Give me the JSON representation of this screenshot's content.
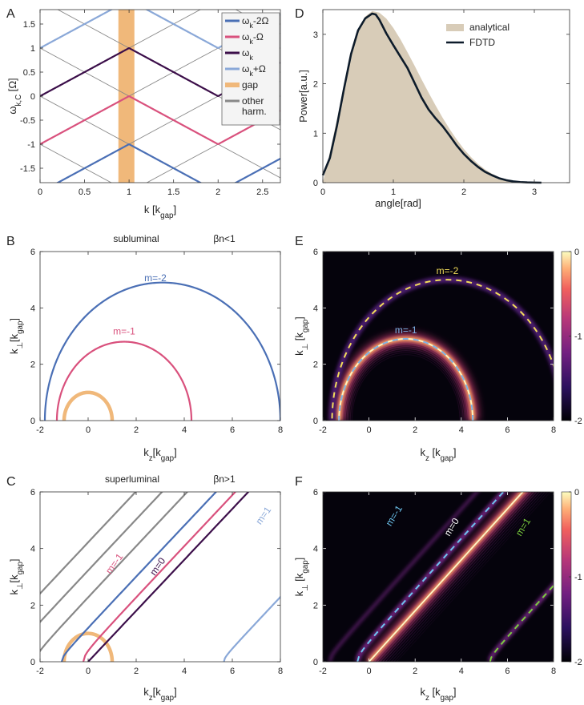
{
  "chart_data": [
    {
      "id": "A",
      "type": "line",
      "panel_label": "A",
      "xlabel": "k [k",
      "xlabel_sub": "gap",
      "xlabel_tail": "]",
      "ylabel": "ω",
      "ylabel_sub": "k,C",
      "ylabel_tail": " [Ω]",
      "xlim": [
        0,
        2.7
      ],
      "ylim": [
        -1.8,
        1.8
      ],
      "xticks": [
        0,
        0.5,
        1,
        1.5,
        2,
        2.5
      ],
      "xtick_labels": [
        "0",
        "0.5",
        "1",
        "1.5",
        "2",
        "2.5"
      ],
      "yticks": [
        -1.5,
        -1,
        -0.5,
        0,
        0.5,
        1,
        1.5
      ],
      "ytick_labels": [
        "-1.5",
        "-1",
        "-0.5",
        "0",
        "0.5",
        "1",
        "1.5"
      ],
      "gap_band": {
        "x": [
          0.88,
          1.06
        ],
        "color": "#f0b87a"
      },
      "legend": {
        "placement": "top-right",
        "entries": [
          {
            "label": "ω",
            "sub": "k",
            "tail": "-2Ω",
            "color": "#4a6fb5"
          },
          {
            "label": "ω",
            "sub": "k",
            "tail": "-Ω",
            "color": "#d9517d"
          },
          {
            "label": "ω",
            "sub": "k",
            "tail": "",
            "color": "#3c0f4a"
          },
          {
            "label": "ω",
            "sub": "k",
            "tail": "+Ω",
            "color": "#8aa8d8"
          },
          {
            "label": "gap",
            "sub": "",
            "tail": "",
            "color": "#f0b87a"
          },
          {
            "label": "other",
            "sub": "",
            "tail": "",
            "line2": "harm.",
            "color": "#888888"
          }
        ]
      },
      "series": [
        {
          "key": "wk_minus2",
          "color": "#4a6fb5",
          "offset": -2
        },
        {
          "key": "wk_minus1",
          "color": "#d9517d",
          "offset": -1
        },
        {
          "key": "wk",
          "color": "#3c0f4a",
          "offset": 0
        },
        {
          "key": "wk_plus1",
          "color": "#8aa8d8",
          "offset": 1
        }
      ],
      "harmonic_color": "#888888",
      "harmonic_slope": 1.0,
      "harmonic_offsets": [
        -4,
        -3,
        -2,
        -1,
        0,
        1,
        2,
        3,
        4
      ]
    },
    {
      "id": "D",
      "type": "area",
      "panel_label": "D",
      "xlabel": "angle[rad]",
      "ylabel": "Power[a.u.]",
      "xlim": [
        0,
        3.5
      ],
      "ylim": [
        0,
        3.5
      ],
      "xticks": [
        0,
        1,
        2,
        3
      ],
      "xtick_labels": [
        "0",
        "1",
        "2",
        "3"
      ],
      "yticks": [
        0,
        1,
        2,
        3
      ],
      "ytick_labels": [
        "0",
        "1",
        "2",
        "3"
      ],
      "legend": {
        "placement": "top-right",
        "entries": [
          {
            "label": "analytical",
            "color": "#d8ccb8",
            "kind": "patch"
          },
          {
            "label": "FDTD",
            "color": "#0d1b2a",
            "kind": "line"
          }
        ]
      },
      "series": [
        {
          "name": "analytical",
          "color": "#d8ccb8",
          "x": [
            0,
            0.1,
            0.2,
            0.3,
            0.4,
            0.5,
            0.6,
            0.7,
            0.8,
            0.9,
            1.0,
            1.1,
            1.2,
            1.3,
            1.4,
            1.5,
            1.6,
            1.7,
            1.8,
            1.9,
            2.0,
            2.1,
            2.2,
            2.3,
            2.4,
            2.5,
            2.6,
            2.7,
            2.8,
            2.9,
            3.0,
            3.1
          ],
          "y": [
            0.0,
            0.62,
            1.28,
            1.98,
            2.62,
            3.08,
            3.36,
            3.47,
            3.44,
            3.32,
            3.13,
            2.9,
            2.64,
            2.37,
            2.09,
            1.82,
            1.56,
            1.31,
            1.08,
            0.87,
            0.68,
            0.52,
            0.38,
            0.27,
            0.18,
            0.11,
            0.06,
            0.03,
            0.015,
            0.006,
            0.002,
            0.0
          ]
        },
        {
          "name": "FDTD",
          "color": "#0d1b2a",
          "x": [
            0,
            0.1,
            0.2,
            0.3,
            0.4,
            0.5,
            0.6,
            0.7,
            0.75,
            0.8,
            0.9,
            1.0,
            1.1,
            1.2,
            1.3,
            1.4,
            1.5,
            1.6,
            1.7,
            1.8,
            1.9,
            2.0,
            2.1,
            2.2,
            2.3,
            2.4,
            2.5,
            2.6,
            2.7,
            2.8,
            2.9,
            3.0,
            3.1
          ],
          "y": [
            0.15,
            0.5,
            1.15,
            1.9,
            2.6,
            3.08,
            3.32,
            3.42,
            3.4,
            3.3,
            3.02,
            2.78,
            2.55,
            2.32,
            2.02,
            1.72,
            1.48,
            1.3,
            1.14,
            0.95,
            0.75,
            0.58,
            0.44,
            0.32,
            0.22,
            0.15,
            0.09,
            0.05,
            0.025,
            0.012,
            0.005,
            0.002,
            0.0
          ]
        }
      ]
    },
    {
      "id": "B",
      "type": "line",
      "panel_label": "B",
      "title_left": "subluminal",
      "title_right": "βn<1",
      "xlabel": "k",
      "xlabel_sub": "z",
      "xlabel_tail": "[k",
      "xlabel_sub2": "gap",
      "xlabel_tail2": "]",
      "ylabel": "k",
      "ylabel_sub": "⊥",
      "ylabel_tail": "[k",
      "ylabel_sub2": "gap",
      "ylabel_tail2": "]",
      "xlim": [
        -2,
        8
      ],
      "ylim": [
        0,
        6
      ],
      "xticks": [
        -2,
        0,
        2,
        4,
        6,
        8
      ],
      "xtick_labels": [
        "-2",
        "0",
        "2",
        "4",
        "6",
        "8"
      ],
      "yticks": [
        0,
        2,
        4,
        6
      ],
      "ytick_labels": [
        "0",
        "2",
        "4",
        "6"
      ],
      "curves": [
        {
          "kind": "circle",
          "cx": 0,
          "r": 1,
          "color": "#f0b87a",
          "width": 4.5
        },
        {
          "kind": "circle",
          "cx": 1.5,
          "r": 2.8,
          "color": "#d9517d",
          "width": 2.2,
          "label": "m=-1",
          "label_at": [
            1.5,
            3.05
          ]
        },
        {
          "kind": "circle",
          "cx": 3.1,
          "r": 4.9,
          "color": "#4a6fb5",
          "width": 2.2,
          "label": "m=-2",
          "label_at": [
            2.8,
            4.95
          ]
        },
        {
          "kind": "circle",
          "cx": 4.3,
          "r": 9.5,
          "color": "#888888",
          "width": 2.5
        }
      ]
    },
    {
      "id": "E",
      "type": "heatmap",
      "panel_label": "E",
      "xlabel": "k",
      "xlabel_sub": "z",
      "xlabel_tail": " [k",
      "xlabel_sub2": "gap",
      "xlabel_tail2": "]",
      "ylabel": "k",
      "ylabel_sub": "⊥",
      "ylabel_tail": " [k",
      "ylabel_sub2": "gap",
      "ylabel_tail2": "]",
      "xlim": [
        -2,
        8
      ],
      "ylim": [
        0,
        6
      ],
      "xticks": [
        -2,
        0,
        2,
        4,
        6,
        8
      ],
      "xtick_labels": [
        "-2",
        "0",
        "2",
        "4",
        "6",
        "8"
      ],
      "yticks": [
        0,
        2,
        4,
        6
      ],
      "ytick_labels": [
        "0",
        "2",
        "4",
        "6"
      ],
      "colorbar": {
        "range": [
          -2,
          0
        ],
        "ticks": [
          0,
          -1,
          -2
        ],
        "tick_labels": [
          "0",
          "-1",
          "-2"
        ]
      },
      "curves": [
        {
          "kind": "circle",
          "cx": 1.6,
          "r": 2.9,
          "label": "m=-1",
          "label_color": "#7fb2e6",
          "dash_color": "#7fb2e6",
          "intensity": 1.0,
          "label_at": [
            1.6,
            3.1
          ]
        },
        {
          "kind": "circle",
          "cx": 3.4,
          "r": 5.0,
          "label": "m=-2",
          "label_color": "#f2dd5a",
          "dash_color": "#f2dd5a",
          "intensity": 0.45,
          "label_at": [
            3.4,
            5.2
          ]
        }
      ]
    },
    {
      "id": "C",
      "type": "line",
      "panel_label": "C",
      "title_left": "superluminal",
      "title_right": "βn>1",
      "xlabel": "k",
      "xlabel_sub": "z",
      "xlabel_tail": "[k",
      "xlabel_sub2": "gap",
      "xlabel_tail2": "]",
      "ylabel": "k",
      "ylabel_sub": "⊥",
      "ylabel_tail": "[k",
      "ylabel_sub2": "gap",
      "ylabel_tail2": "]",
      "xlim": [
        -2,
        8
      ],
      "ylim": [
        0,
        6
      ],
      "xticks": [
        -2,
        0,
        2,
        4,
        6,
        8
      ],
      "xtick_labels": [
        "-2",
        "0",
        "2",
        "4",
        "6",
        "8"
      ],
      "yticks": [
        0,
        2,
        4,
        6
      ],
      "ytick_labels": [
        "0",
        "2",
        "4",
        "6"
      ],
      "gap_circle": {
        "cx": 0,
        "r": 1,
        "color": "#f0b87a"
      },
      "hyperbolas": [
        {
          "x0": 0.0,
          "a": 0.0,
          "slope": 0.9,
          "color": "#3c0f4a",
          "label": "m=0",
          "label_at": [
            3.0,
            3.3
          ]
        },
        {
          "x0": -0.55,
          "a": 0.35,
          "slope": 0.9,
          "color": "#d9517d",
          "label": "m=-1",
          "label_at": [
            1.2,
            3.4
          ]
        },
        {
          "x0": -1.35,
          "a": 0.25,
          "slope": 0.9,
          "color": "#4a6fb5"
        },
        {
          "x0": 5.45,
          "a": 0.2,
          "slope": 0.9,
          "color": "#8aa8d8",
          "label": "m=1",
          "label_at": [
            7.4,
            5.1
          ]
        },
        {
          "x0": -2.55,
          "a": 0.35,
          "slope": 0.9,
          "color": "#888888"
        },
        {
          "x0": -3.6,
          "a": 0.35,
          "slope": 0.9,
          "color": "#888888"
        },
        {
          "x0": -4.7,
          "a": 0.35,
          "slope": 0.9,
          "color": "#888888"
        }
      ]
    },
    {
      "id": "F",
      "type": "heatmap",
      "panel_label": "F",
      "xlabel": "k",
      "xlabel_sub": "z",
      "xlabel_tail": " [k",
      "xlabel_sub2": "gap",
      "xlabel_tail2": "]",
      "ylabel": "k",
      "ylabel_sub": "⊥",
      "ylabel_tail": " [k",
      "ylabel_sub2": "gap",
      "ylabel_tail2": "]",
      "xlim": [
        -2,
        8
      ],
      "ylim": [
        0,
        6
      ],
      "xticks": [
        -2,
        0,
        2,
        4,
        6,
        8
      ],
      "xtick_labels": [
        "-2",
        "0",
        "2",
        "4",
        "6",
        "8"
      ],
      "yticks": [
        0,
        2,
        4,
        6
      ],
      "ytick_labels": [
        "0",
        "2",
        "4",
        "6"
      ],
      "colorbar": {
        "range": [
          -2,
          0
        ],
        "ticks": [
          0,
          -1,
          -2
        ],
        "tick_labels": [
          "0",
          "-1",
          "-2"
        ]
      },
      "hyperbolas": [
        {
          "x0": 0.0,
          "a": 0.0,
          "slope": 0.9,
          "intensity": 1.0,
          "label": "m=0",
          "label_color": "#ffffff",
          "label_at": [
            3.7,
            4.7
          ]
        },
        {
          "x0": -0.85,
          "a": 0.35,
          "slope": 0.9,
          "intensity": 0.6,
          "dash_color": "#6ec6f0",
          "label": "m=-1",
          "label_color": "#6ec6f0",
          "label_at": [
            1.2,
            5.1
          ]
        },
        {
          "x0": 5.0,
          "a": 0.25,
          "slope": 0.9,
          "intensity": 0.55,
          "dash_color": "#7ccf3f",
          "label": "m=1",
          "label_color": "#7ccf3f",
          "label_at": [
            6.8,
            4.7
          ]
        },
        {
          "x0": -2.0,
          "a": 0.3,
          "slope": 0.9,
          "intensity": 0.3
        }
      ]
    }
  ]
}
